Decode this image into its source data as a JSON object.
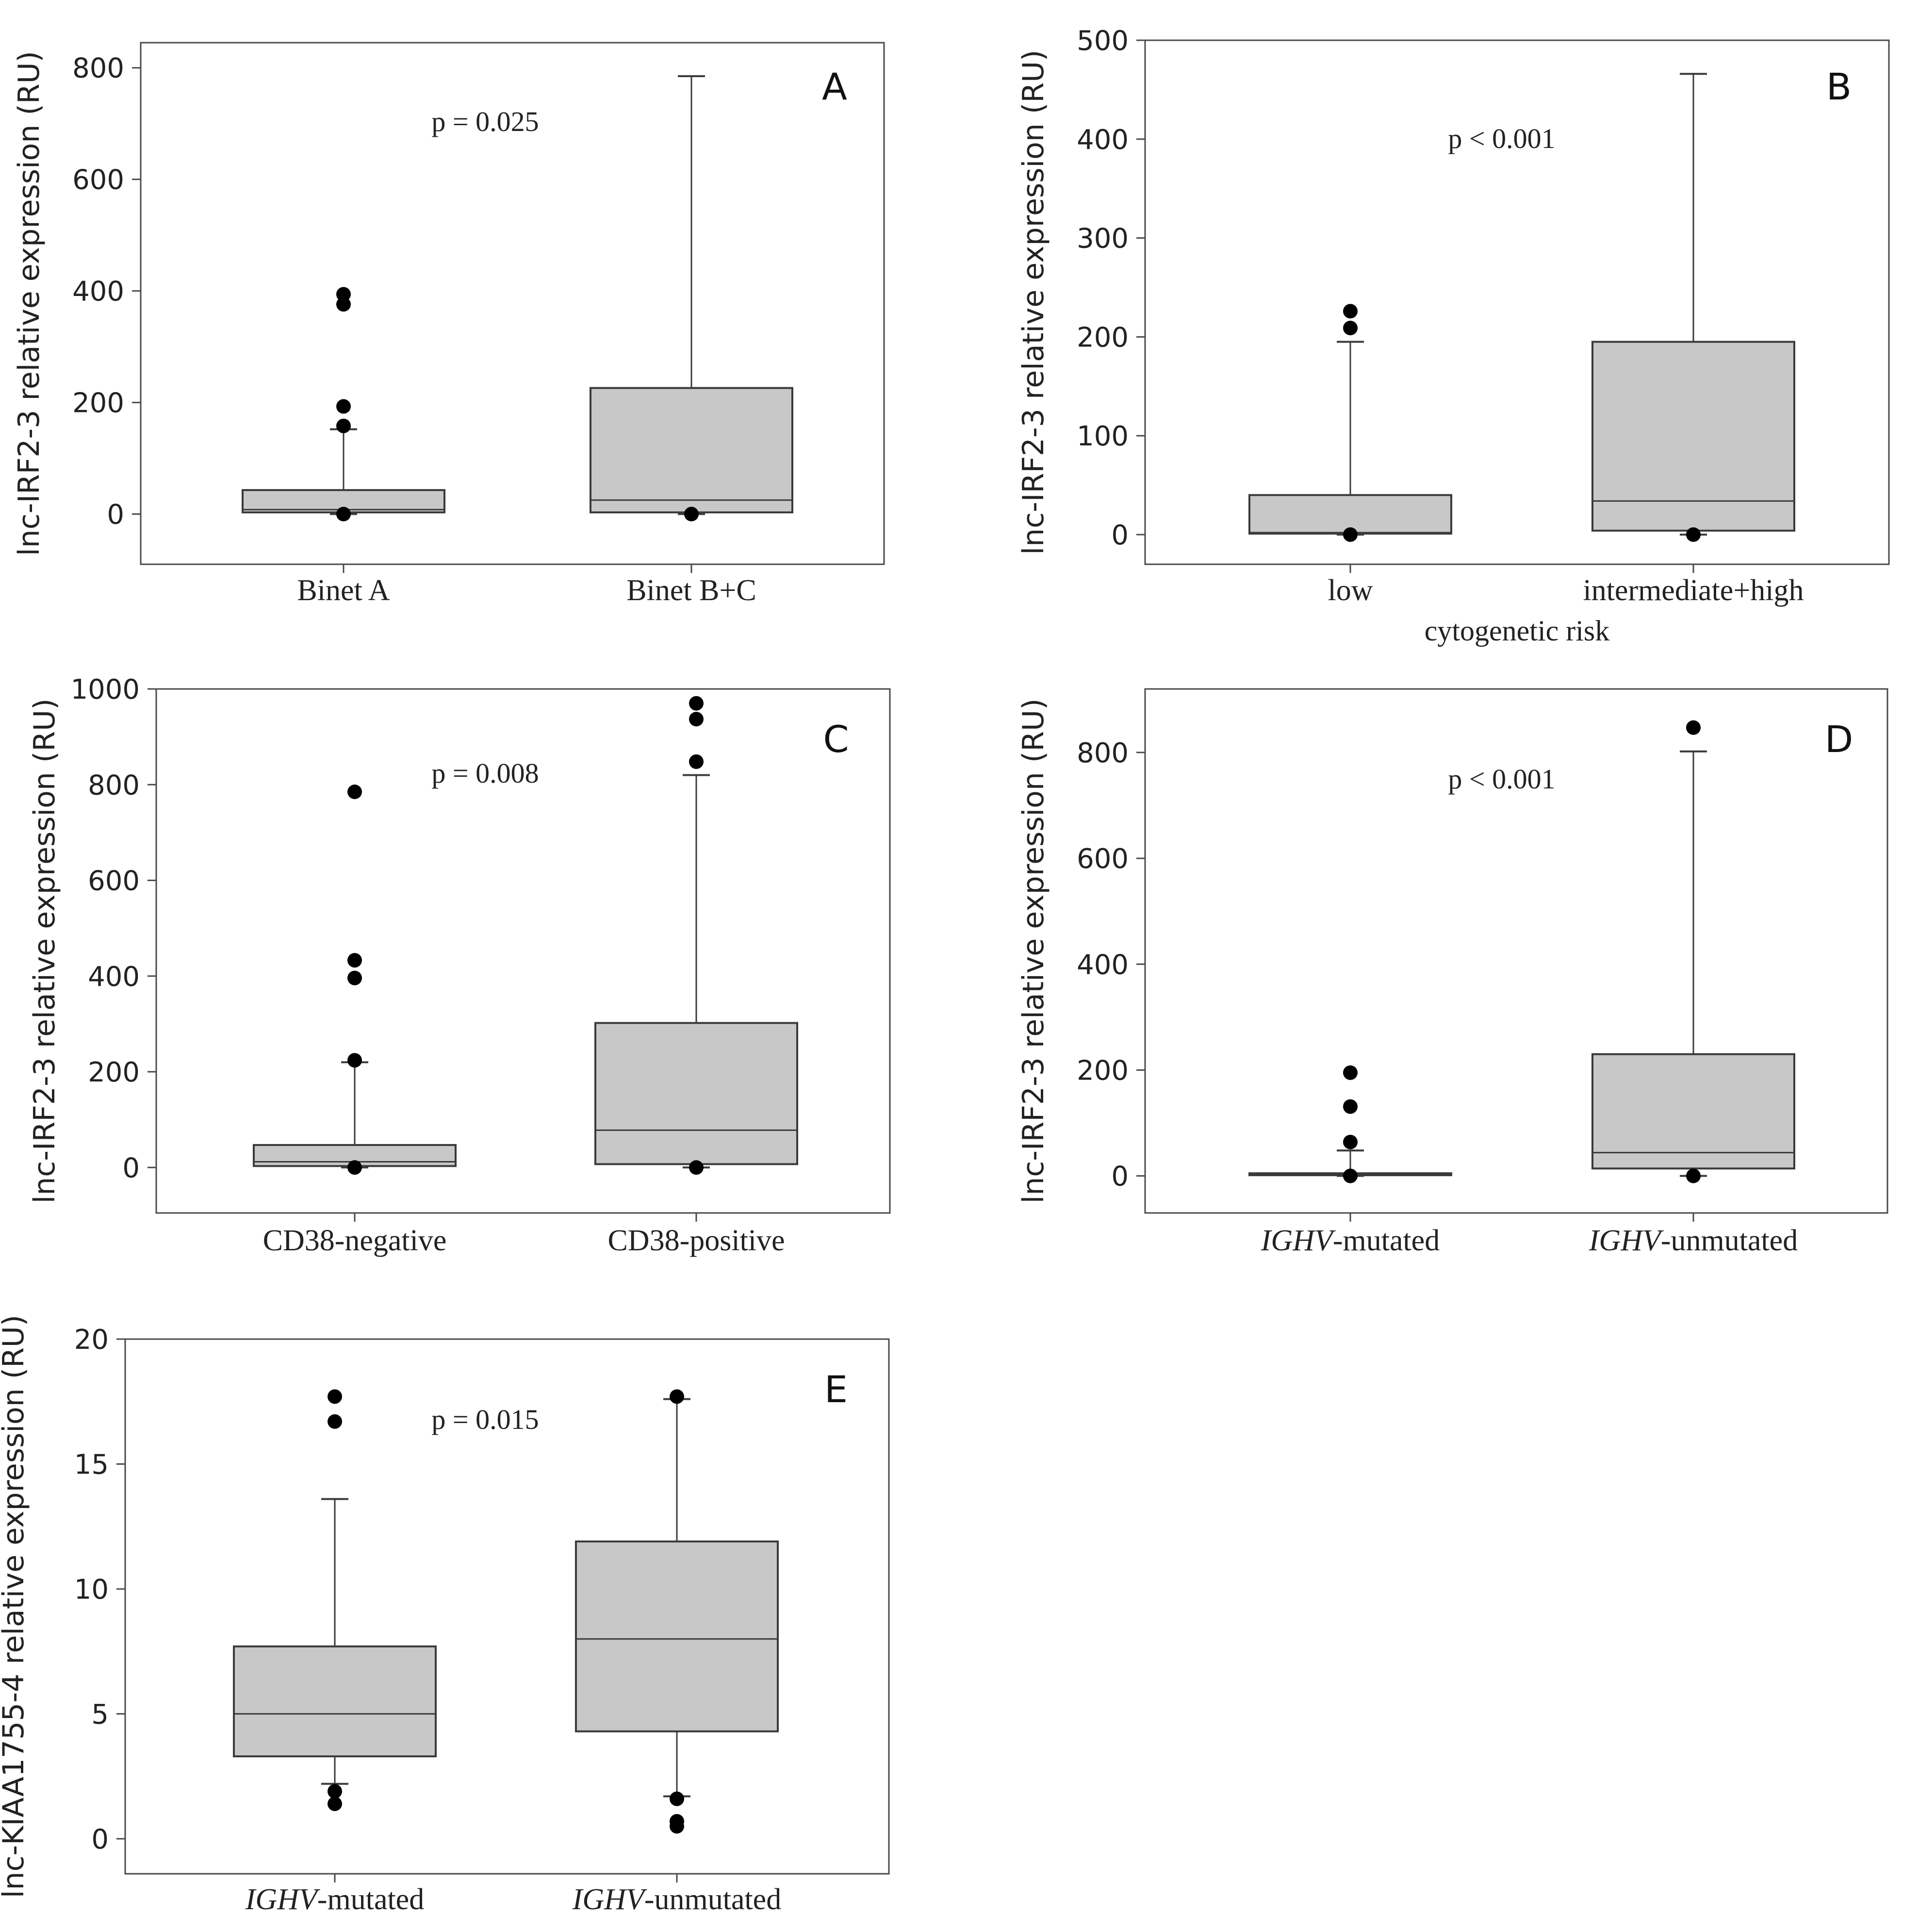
{
  "chart_data": [
    {
      "panel": "A",
      "type": "box",
      "ylabel": "lnc-IRF2-3 relative expression (RU)",
      "xlabel": "",
      "pvalue": "p = 0.025",
      "ylim": [
        -90,
        845
      ],
      "yticks": [
        0,
        200,
        400,
        600,
        800
      ],
      "categories": [
        {
          "label": "Binet A",
          "italic_prefix": "",
          "label_rest": "Binet A",
          "q1": 3,
          "median": 8,
          "q3": 43,
          "whisker_low": 0,
          "whisker_high": 152,
          "outliers": [
            0,
            158,
            193,
            376,
            394
          ]
        },
        {
          "label": "Binet B+C",
          "italic_prefix": "",
          "label_rest": "Binet B+C",
          "q1": 3,
          "median": 25,
          "q3": 226,
          "whisker_low": 0,
          "whisker_high": 785,
          "outliers": [
            0
          ]
        }
      ]
    },
    {
      "panel": "B",
      "type": "box",
      "ylabel": "lnc-IRF2-3 relative expression (RU)",
      "xlabel": "cytogenetic risk",
      "pvalue": "p < 0.001",
      "ylim": [
        -30,
        500
      ],
      "yticks": [
        0,
        100,
        200,
        300,
        400,
        500
      ],
      "categories": [
        {
          "label": "low",
          "italic_prefix": "",
          "label_rest": "low",
          "q1": 1,
          "median": 2,
          "q3": 40,
          "whisker_low": 0,
          "whisker_high": 195,
          "outliers": [
            0,
            209,
            226
          ]
        },
        {
          "label": "intermediate+high",
          "italic_prefix": "",
          "label_rest": "intermediate+high",
          "q1": 4,
          "median": 34,
          "q3": 195,
          "whisker_low": 0,
          "whisker_high": 466,
          "outliers": [
            0
          ]
        }
      ]
    },
    {
      "panel": "C",
      "type": "box",
      "ylabel": "lnc-IRF2-3 relative expression (RU)",
      "xlabel": "",
      "pvalue": "p = 0.008",
      "ylim": [
        -95,
        1000
      ],
      "yticks": [
        0,
        200,
        400,
        600,
        800,
        1000
      ],
      "categories": [
        {
          "label": "CD38-negative",
          "italic_prefix": "",
          "label_rest": "CD38-negative",
          "q1": 3,
          "median": 12,
          "q3": 47,
          "whisker_low": 0,
          "whisker_high": 220,
          "outliers": [
            0,
            224,
            396,
            433,
            785
          ]
        },
        {
          "label": "CD38-positive",
          "italic_prefix": "",
          "label_rest": "CD38-positive",
          "q1": 7,
          "median": 78,
          "q3": 302,
          "whisker_low": 0,
          "whisker_high": 820,
          "outliers": [
            0,
            848,
            937,
            970
          ]
        }
      ]
    },
    {
      "panel": "D",
      "type": "box",
      "ylabel": "lnc-IRF2-3 relative expression (RU)",
      "xlabel": "",
      "pvalue": "p < 0.001",
      "ylim": [
        -70,
        920
      ],
      "yticks": [
        0,
        200,
        400,
        600,
        800
      ],
      "categories": [
        {
          "label": "IGHV-mutated",
          "italic_prefix": "IGHV",
          "label_rest": "-mutated",
          "q1": 2,
          "median": 3,
          "q3": 5,
          "whisker_low": 0,
          "whisker_high": 48,
          "outliers": [
            0,
            64,
            131,
            195
          ]
        },
        {
          "label": "IGHV-unmutated",
          "italic_prefix": "IGHV",
          "label_rest": "-unmutated",
          "q1": 14,
          "median": 44,
          "q3": 230,
          "whisker_low": 0,
          "whisker_high": 802,
          "outliers": [
            0,
            847
          ]
        }
      ]
    },
    {
      "panel": "E",
      "type": "box",
      "ylabel": "lnc-KIAA1755-4 relative expression (RU)",
      "xlabel": "",
      "pvalue": "p = 0.015",
      "ylim": [
        -1.4,
        20
      ],
      "yticks": [
        0,
        5,
        10,
        15,
        20
      ],
      "categories": [
        {
          "label": "IGHV-mutated",
          "italic_prefix": "IGHV",
          "label_rest": "-mutated",
          "q1": 3.3,
          "median": 5.0,
          "q3": 7.7,
          "whisker_low": 2.2,
          "whisker_high": 13.6,
          "outliers": [
            1.4,
            1.9,
            16.7,
            17.7
          ]
        },
        {
          "label": "IGHV-unmutated",
          "italic_prefix": "IGHV",
          "label_rest": "-unmutated",
          "q1": 4.3,
          "median": 8.0,
          "q3": 11.9,
          "whisker_low": 1.7,
          "whisker_high": 17.6,
          "outliers": [
            0.5,
            0.7,
            1.6,
            17.7
          ]
        }
      ]
    }
  ],
  "colors": {
    "box_fill": "#c8c8c8",
    "stroke": "#3a3a3a",
    "dots": "#000000",
    "frame": "#4a4a4a"
  }
}
